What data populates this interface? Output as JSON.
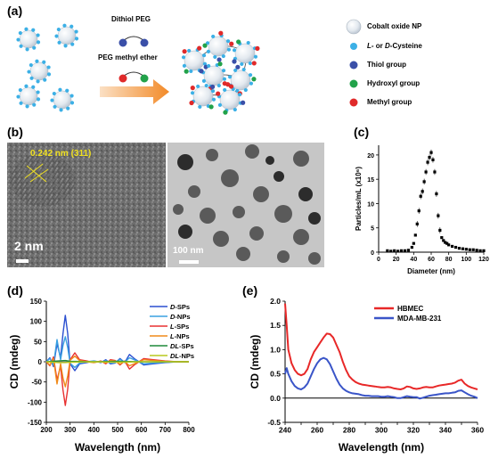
{
  "panel_labels": {
    "a": "(a)",
    "b": "(b)",
    "c": "(c)",
    "d": "(d)",
    "e": "(e)"
  },
  "scheme": {
    "reagent1": "Dithiol PEG",
    "reagent2": "PEG methyl ether",
    "legend": [
      {
        "key": "np",
        "label": "Cobalt oxide NP",
        "color": "#dfe6ee"
      },
      {
        "key": "cys",
        "label_prefix": "L- ",
        "label_mid": "or ",
        "label_d": "D-",
        "label_rest": "Cysteine",
        "label": "L- or D-Cysteine",
        "color": "#3cb0e6"
      },
      {
        "key": "thiol",
        "label": "Thiol group",
        "color": "#3a4fa8"
      },
      {
        "key": "hydroxyl",
        "label": "Hydroxyl group",
        "color": "#22a24a"
      },
      {
        "key": "methyl",
        "label": "Methyl group",
        "color": "#e02a2a"
      }
    ]
  },
  "tem": {
    "lattice": "0.242 nm (311)",
    "scale_left": "2 nm",
    "scale_right": "100 nm"
  },
  "chart_data": [
    {
      "id": "c",
      "type": "scatter",
      "xlabel": "Diameter (nm)",
      "ylabel": "Particles/mL (x10⁶)",
      "xlim": [
        0,
        120
      ],
      "ylim": [
        0,
        22
      ],
      "xticks": [
        0,
        20,
        40,
        60,
        80,
        100,
        120
      ],
      "yticks": [
        0,
        5,
        10,
        15,
        20
      ],
      "x": [
        10,
        14,
        18,
        22,
        26,
        30,
        34,
        38,
        40,
        42,
        44,
        46,
        48,
        50,
        52,
        54,
        56,
        58,
        60,
        62,
        64,
        66,
        68,
        70,
        72,
        74,
        76,
        78,
        80,
        84,
        88,
        92,
        96,
        100,
        104,
        108,
        112,
        116,
        120
      ],
      "y": [
        0.3,
        0.2,
        0.3,
        0.2,
        0.3,
        0.3,
        0.4,
        1.0,
        1.8,
        3.5,
        5.8,
        8.5,
        11.5,
        12.5,
        14.5,
        16.5,
        18.5,
        19.5,
        20.5,
        19.0,
        16.5,
        12.0,
        7.5,
        4.5,
        3.0,
        2.4,
        2.0,
        1.8,
        1.5,
        1.2,
        1.0,
        0.8,
        0.7,
        0.6,
        0.5,
        0.5,
        0.4,
        0.3,
        0.3
      ]
    },
    {
      "id": "d",
      "type": "line",
      "xlabel": "Wavelength (nm)",
      "ylabel": "CD (mdeg)",
      "xlim": [
        200,
        800
      ],
      "ylim": [
        -150,
        150
      ],
      "xticks": [
        200,
        300,
        400,
        500,
        600,
        700,
        800
      ],
      "yticks": [
        -150,
        -100,
        -50,
        0,
        50,
        100,
        150
      ],
      "series": [
        {
          "name": "D-SPs",
          "name_prefix": "D",
          "name_suffix": "-SPs",
          "color": "#2b4fd0",
          "x": [
            200,
            215,
            230,
            245,
            260,
            270,
            280,
            290,
            300,
            320,
            340,
            370,
            400,
            430,
            450,
            470,
            490,
            510,
            530,
            550,
            570,
            590,
            610,
            650,
            700,
            750,
            800
          ],
          "y": [
            0,
            10,
            -12,
            45,
            10,
            70,
            115,
            70,
            -5,
            -22,
            -5,
            -2,
            2,
            -2,
            5,
            -5,
            -3,
            8,
            -2,
            18,
            8,
            0,
            -8,
            -5,
            -2,
            0,
            0
          ]
        },
        {
          "name": "D-NPs",
          "name_prefix": "D",
          "name_suffix": "-NPs",
          "color": "#3aa0e0",
          "x": [
            200,
            215,
            230,
            245,
            260,
            270,
            280,
            290,
            300,
            320,
            340,
            370,
            400,
            430,
            450,
            470,
            490,
            510,
            530,
            550,
            570,
            590,
            610,
            650,
            700,
            750,
            800
          ],
          "y": [
            0,
            8,
            -8,
            55,
            5,
            40,
            62,
            35,
            -4,
            -14,
            -3,
            0,
            2,
            -1,
            3,
            -3,
            -2,
            6,
            -1,
            10,
            5,
            0,
            -5,
            -3,
            -1,
            0,
            0
          ]
        },
        {
          "name": "L-SPs",
          "name_prefix": "L",
          "name_suffix": "-SPs",
          "color": "#e83030",
          "x": [
            200,
            215,
            230,
            245,
            260,
            270,
            280,
            290,
            300,
            320,
            340,
            370,
            400,
            430,
            450,
            470,
            490,
            510,
            530,
            550,
            570,
            590,
            610,
            650,
            700,
            750,
            800
          ],
          "y": [
            0,
            -10,
            12,
            -45,
            -10,
            -70,
            -108,
            -68,
            5,
            22,
            5,
            2,
            -2,
            2,
            -5,
            5,
            3,
            -8,
            2,
            -18,
            -8,
            0,
            8,
            5,
            2,
            0,
            0
          ]
        },
        {
          "name": "L-NPs",
          "name_prefix": "L",
          "name_suffix": "-NPs",
          "color": "#f08a1a",
          "x": [
            200,
            215,
            230,
            245,
            260,
            270,
            280,
            290,
            300,
            320,
            340,
            370,
            400,
            430,
            450,
            470,
            490,
            510,
            530,
            550,
            570,
            590,
            610,
            650,
            700,
            750,
            800
          ],
          "y": [
            0,
            -8,
            8,
            -55,
            -5,
            -40,
            -62,
            -35,
            4,
            14,
            3,
            0,
            -2,
            1,
            -3,
            3,
            2,
            -6,
            1,
            -10,
            -5,
            0,
            5,
            3,
            1,
            0,
            0
          ]
        },
        {
          "name": "DL-SPs",
          "name_prefix": "DL",
          "name_suffix": "-SPs",
          "color": "#1e8a3a",
          "x": [
            200,
            250,
            280,
            300,
            400,
            500,
            600,
            700,
            800
          ],
          "y": [
            0,
            2,
            3,
            1,
            0,
            1,
            0,
            0,
            0
          ]
        },
        {
          "name": "DL-NPs",
          "name_prefix": "DL",
          "name_suffix": "-NPs",
          "color": "#b8c81e",
          "x": [
            200,
            250,
            280,
            300,
            400,
            500,
            600,
            700,
            800
          ],
          "y": [
            0,
            -2,
            -2,
            -1,
            0,
            -1,
            0,
            0,
            0
          ]
        }
      ]
    },
    {
      "id": "e",
      "type": "line",
      "xlabel": "Wavelength (nm)",
      "ylabel": "CD (mdeg)",
      "xlim": [
        240,
        360
      ],
      "ylim": [
        -0.5,
        2.0
      ],
      "xticks": [
        240,
        250,
        260,
        270,
        280,
        290,
        300,
        310,
        320,
        330,
        340,
        350,
        360
      ],
      "yticks": [
        -0.5,
        0.0,
        0.5,
        1.0,
        1.5,
        2.0
      ],
      "series": [
        {
          "name": "HBMEC",
          "color": "#e82828",
          "x": [
            240,
            241,
            242,
            244,
            246,
            248,
            250,
            252,
            254,
            256,
            258,
            260,
            262,
            264,
            266,
            268,
            270,
            272,
            274,
            276,
            278,
            280,
            282,
            284,
            286,
            288,
            290,
            292,
            294,
            296,
            298,
            300,
            302,
            304,
            306,
            308,
            310,
            312,
            314,
            316,
            318,
            320,
            322,
            324,
            326,
            328,
            330,
            332,
            334,
            336,
            338,
            340,
            342,
            344,
            346,
            348,
            350,
            352,
            354,
            356,
            358,
            360
          ],
          "y": [
            1.95,
            1.5,
            1.0,
            0.72,
            0.58,
            0.5,
            0.47,
            0.5,
            0.6,
            0.8,
            0.95,
            1.05,
            1.15,
            1.25,
            1.33,
            1.32,
            1.25,
            1.1,
            0.95,
            0.75,
            0.58,
            0.45,
            0.38,
            0.33,
            0.3,
            0.28,
            0.27,
            0.26,
            0.25,
            0.24,
            0.23,
            0.22,
            0.22,
            0.23,
            0.22,
            0.2,
            0.19,
            0.18,
            0.2,
            0.24,
            0.23,
            0.2,
            0.19,
            0.2,
            0.22,
            0.23,
            0.22,
            0.22,
            0.24,
            0.26,
            0.27,
            0.28,
            0.29,
            0.3,
            0.32,
            0.36,
            0.38,
            0.3,
            0.25,
            0.22,
            0.2,
            0.18
          ]
        },
        {
          "name": "MDA-MB-231",
          "color": "#3a55c8",
          "x": [
            240,
            241,
            242,
            244,
            246,
            248,
            250,
            252,
            254,
            256,
            258,
            260,
            262,
            264,
            266,
            268,
            270,
            272,
            274,
            276,
            278,
            280,
            282,
            284,
            286,
            288,
            290,
            292,
            294,
            296,
            298,
            300,
            302,
            304,
            306,
            308,
            310,
            312,
            314,
            316,
            318,
            320,
            322,
            324,
            326,
            328,
            330,
            332,
            334,
            336,
            338,
            340,
            342,
            344,
            346,
            348,
            350,
            352,
            354,
            356,
            358,
            360
          ],
          "y": [
            0.5,
            0.62,
            0.5,
            0.35,
            0.25,
            0.2,
            0.18,
            0.22,
            0.3,
            0.45,
            0.6,
            0.72,
            0.8,
            0.83,
            0.8,
            0.7,
            0.55,
            0.4,
            0.28,
            0.2,
            0.15,
            0.12,
            0.1,
            0.09,
            0.08,
            0.06,
            0.05,
            0.05,
            0.04,
            0.04,
            0.04,
            0.03,
            0.03,
            0.04,
            0.03,
            0.02,
            0.0,
            0.0,
            0.02,
            0.04,
            0.03,
            0.02,
            0.02,
            -0.01,
            0.01,
            0.03,
            0.05,
            0.06,
            0.07,
            0.08,
            0.09,
            0.1,
            0.1,
            0.11,
            0.12,
            0.15,
            0.16,
            0.12,
            0.08,
            0.05,
            0.03,
            0.0
          ]
        }
      ]
    }
  ]
}
